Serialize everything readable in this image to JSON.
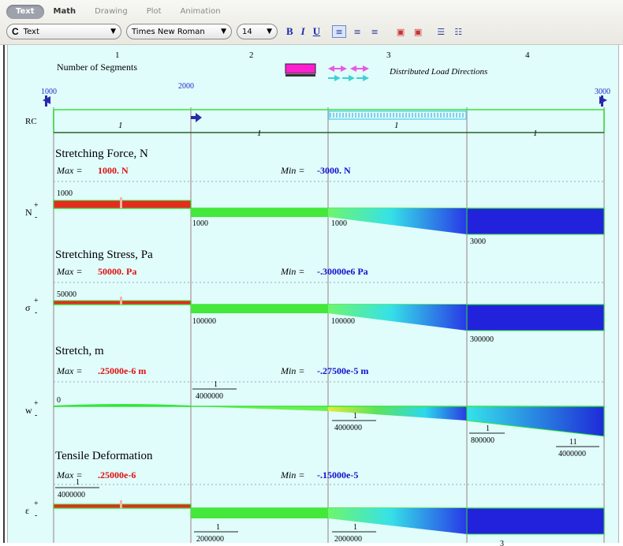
{
  "toolbar": {
    "tabs": [
      {
        "label": "Text"
      },
      {
        "label": "Math"
      },
      {
        "label": "Drawing"
      },
      {
        "label": "Plot"
      },
      {
        "label": "Animation"
      }
    ],
    "style_value": "Text",
    "style_cap": "C",
    "font_value": "Times New Roman",
    "size_value": "14",
    "bold": "B",
    "italic": "I",
    "underline": "U"
  },
  "header": {
    "segment_numbers": [
      "1",
      "2",
      "3",
      "4"
    ],
    "number_of_segments_label": "Number of Segments",
    "distributed_load_label": "Distributed Load Directions",
    "load_values": {
      "left": "1000",
      "mid": "2000",
      "right": "3000"
    },
    "rc_label": "RC",
    "segment_tags": [
      "1",
      "1",
      "1",
      "1"
    ]
  },
  "sections": [
    {
      "title": "Stretching Force, N",
      "max_label": "Max =",
      "max_value": "1000. N",
      "min_label": "Min =",
      "min_value": "-3000. N",
      "axis_symbol": "N",
      "plus": "+",
      "minus": "-",
      "values": [
        "1000",
        "1000",
        "1000",
        "3000"
      ]
    },
    {
      "title": "Stretching Stress, Pa",
      "max_label": "Max =",
      "max_value": "50000. Pa",
      "min_label": "Min =",
      "min_value": "-.30000e6 Pa",
      "axis_symbol": "σ",
      "plus": "+",
      "minus": "-",
      "values": [
        "50000",
        "100000",
        "100000",
        "300000"
      ]
    },
    {
      "title": "Stretch, m",
      "max_label": "Max =",
      "max_value": ".25000e-6 m",
      "min_label": "Min =",
      "min_value": "-.27500e-5 m",
      "axis_symbol": "w",
      "plus": "+",
      "minus": "-",
      "values": [
        "0"
      ],
      "fractions": [
        {
          "num": "1",
          "den": "4000000"
        },
        {
          "num": "1",
          "den": "4000000"
        },
        {
          "num": "1",
          "den": "800000"
        },
        {
          "num": "11",
          "den": "4000000"
        }
      ]
    },
    {
      "title": "Tensile Deformation",
      "max_label": "Max =",
      "max_value": ".25000e-6",
      "min_label": "Min =",
      "min_value": "-.15000e-5",
      "axis_symbol": "ε",
      "plus": "+",
      "minus": "-",
      "fractions": [
        {
          "num": "1",
          "den": "4000000"
        },
        {
          "num": "1",
          "den": "2000000"
        },
        {
          "num": "1",
          "den": "2000000"
        },
        {
          "num": "3",
          "den": ""
        }
      ]
    }
  ],
  "colors": {
    "positive": "#e52b1e",
    "negative_deep": "#1a1adc",
    "mid_green": "#2fe83a",
    "max_red": "#e01010",
    "min_blue": "#1010d0",
    "load_magenta": "#ff1fd0",
    "load_arrow": "#2a2aa8",
    "background": "#e0fcfb"
  }
}
